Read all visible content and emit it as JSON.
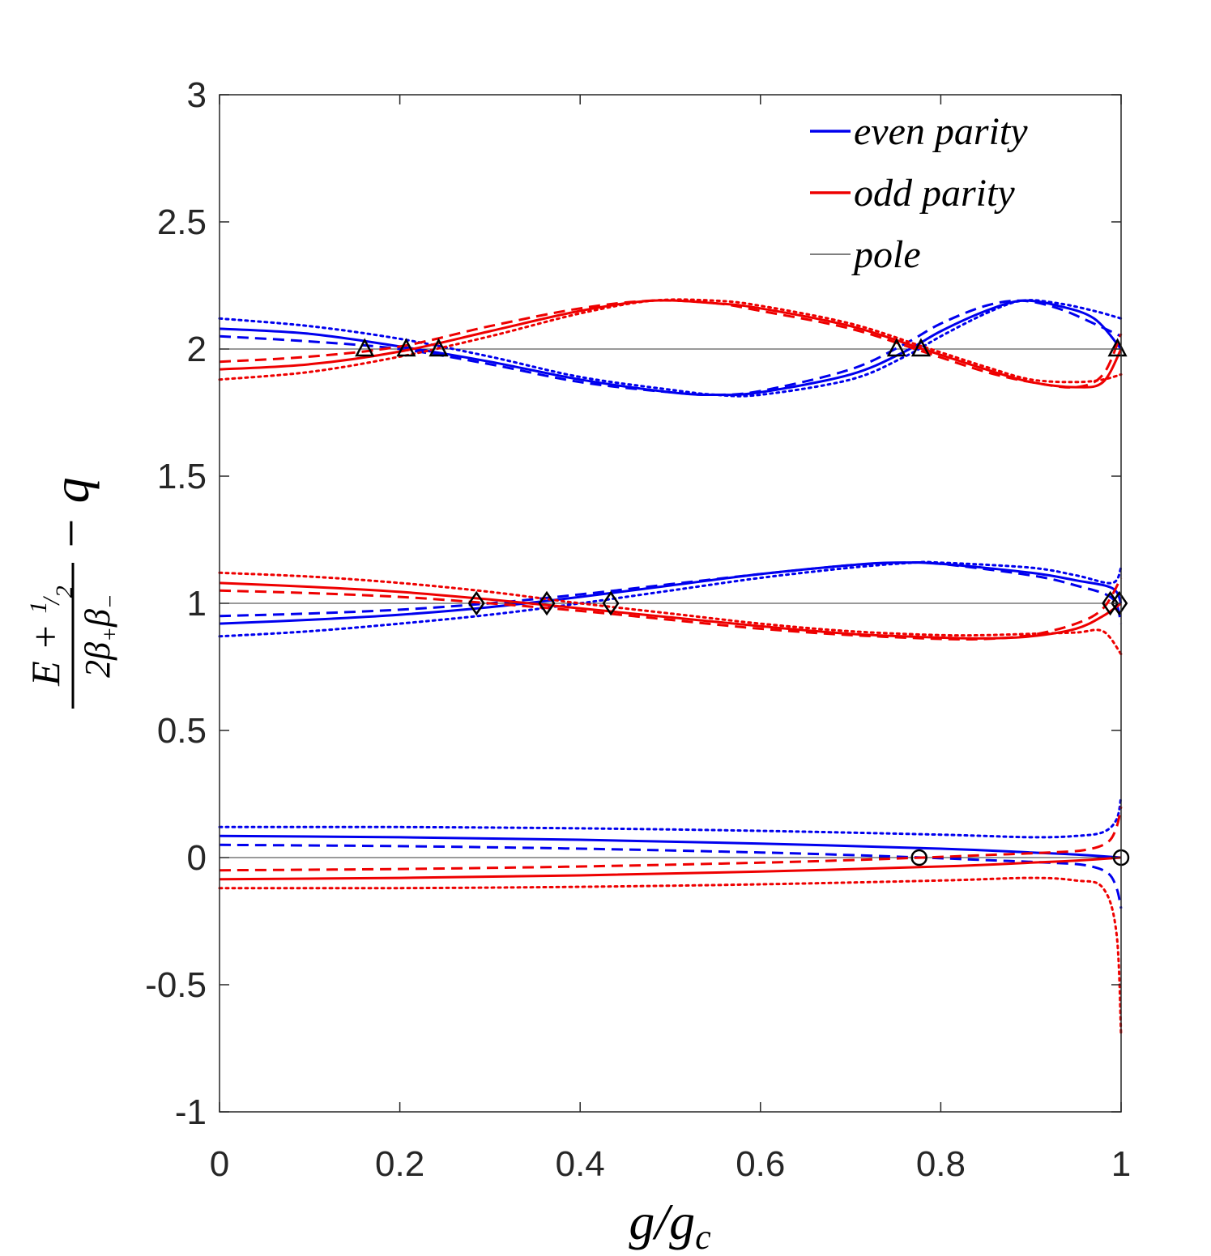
{
  "chart_data": {
    "type": "line",
    "xlabel": "g/g_c",
    "ylabel": "(E + 1/2) / (2β₊β₋) − q",
    "xlim": [
      0,
      1
    ],
    "ylim": [
      -1,
      3
    ],
    "x_ticks": [
      "0",
      "0.2",
      "0.4",
      "0.6",
      "0.8",
      "1"
    ],
    "y_ticks": [
      "-1",
      "-0.5",
      "0",
      "0.5",
      "1",
      "1.5",
      "2",
      "2.5",
      "3"
    ],
    "legend": {
      "position": "top-right",
      "entries": [
        {
          "label": "even parity",
          "color": "#0000ee"
        },
        {
          "label": "odd parity",
          "color": "#ee0000"
        },
        {
          "label": "pole",
          "color": "#333333"
        }
      ]
    },
    "poles": [
      0,
      1,
      2
    ],
    "series": [
      {
        "name": "even q=0 solid",
        "color": "#0000ee",
        "dash": "solid",
        "x": [
          0,
          0.2,
          0.4,
          0.6,
          0.8,
          0.9,
          0.95,
          1.0
        ],
        "y": [
          0.085,
          0.08,
          0.07,
          0.055,
          0.035,
          0.02,
          0.012,
          0.0
        ]
      },
      {
        "name": "even q=0 dashed",
        "color": "#0000ee",
        "dash": "dashed",
        "x": [
          0,
          0.2,
          0.4,
          0.6,
          0.7,
          0.78,
          0.85,
          0.92,
          0.96,
          0.985,
          0.995,
          1.0
        ],
        "y": [
          0.05,
          0.045,
          0.035,
          0.02,
          0.01,
          0.0,
          -0.01,
          -0.02,
          -0.03,
          -0.06,
          -0.12,
          -0.2
        ]
      },
      {
        "name": "even q=0 dotted",
        "color": "#0000ee",
        "dash": "dotted",
        "x": [
          0,
          0.2,
          0.4,
          0.6,
          0.8,
          0.9,
          0.95,
          0.98,
          0.995,
          1.0
        ],
        "y": [
          0.12,
          0.12,
          0.115,
          0.105,
          0.09,
          0.08,
          0.085,
          0.1,
          0.15,
          0.24
        ]
      },
      {
        "name": "odd q=0 solid",
        "color": "#ee0000",
        "dash": "solid",
        "x": [
          0,
          0.2,
          0.4,
          0.6,
          0.8,
          0.9,
          0.95,
          1.0
        ],
        "y": [
          -0.085,
          -0.08,
          -0.07,
          -0.055,
          -0.035,
          -0.02,
          -0.012,
          0.0
        ]
      },
      {
        "name": "odd q=0 dashed",
        "color": "#ee0000",
        "dash": "dashed",
        "x": [
          0,
          0.2,
          0.4,
          0.6,
          0.7,
          0.78,
          0.85,
          0.92,
          0.96,
          0.985,
          0.995,
          1.0
        ],
        "y": [
          -0.05,
          -0.045,
          -0.035,
          -0.02,
          -0.01,
          0.0,
          0.01,
          0.02,
          0.03,
          0.06,
          0.12,
          0.2
        ]
      },
      {
        "name": "odd q=0 dotted",
        "color": "#ee0000",
        "dash": "dotted",
        "x": [
          0,
          0.2,
          0.4,
          0.6,
          0.8,
          0.9,
          0.95,
          0.98,
          0.995,
          1.0
        ],
        "y": [
          -0.12,
          -0.12,
          -0.115,
          -0.105,
          -0.09,
          -0.08,
          -0.09,
          -0.12,
          -0.3,
          -0.7
        ]
      },
      {
        "name": "even q=1 solid",
        "color": "#0000ee",
        "dash": "solid",
        "x": [
          0,
          0.1,
          0.2,
          0.3,
          0.4,
          0.5,
          0.6,
          0.7,
          0.75,
          0.8,
          0.9,
          0.95,
          0.99,
          1.0
        ],
        "y": [
          0.92,
          0.935,
          0.955,
          0.985,
          1.025,
          1.07,
          1.115,
          1.15,
          1.16,
          1.155,
          1.12,
          1.09,
          1.06,
          1.0
        ]
      },
      {
        "name": "even q=1 dashed",
        "color": "#0000ee",
        "dash": "dashed",
        "x": [
          0,
          0.1,
          0.2,
          0.3,
          0.4,
          0.5,
          0.6,
          0.7,
          0.76,
          0.8,
          0.9,
          0.95,
          0.99,
          1.0
        ],
        "y": [
          0.95,
          0.96,
          0.975,
          1.0,
          1.035,
          1.075,
          1.115,
          1.15,
          1.16,
          1.155,
          1.11,
          1.07,
          1.02,
          0.92
        ]
      },
      {
        "name": "even q=1 dotted",
        "color": "#0000ee",
        "dash": "dotted",
        "x": [
          0,
          0.1,
          0.2,
          0.3,
          0.4,
          0.5,
          0.6,
          0.7,
          0.77,
          0.8,
          0.9,
          0.95,
          0.99,
          1.0
        ],
        "y": [
          0.87,
          0.89,
          0.92,
          0.955,
          1.0,
          1.05,
          1.1,
          1.14,
          1.16,
          1.16,
          1.14,
          1.11,
          1.08,
          1.14
        ]
      },
      {
        "name": "odd q=1 solid",
        "color": "#ee0000",
        "dash": "solid",
        "x": [
          0,
          0.1,
          0.2,
          0.3,
          0.4,
          0.5,
          0.6,
          0.7,
          0.8,
          0.85,
          0.9,
          0.95,
          0.98,
          1.0
        ],
        "y": [
          1.08,
          1.065,
          1.045,
          1.015,
          0.98,
          0.945,
          0.91,
          0.88,
          0.865,
          0.862,
          0.87,
          0.9,
          0.95,
          1.0
        ]
      },
      {
        "name": "odd q=1 dashed",
        "color": "#ee0000",
        "dash": "dashed",
        "x": [
          0,
          0.1,
          0.2,
          0.3,
          0.4,
          0.5,
          0.6,
          0.7,
          0.8,
          0.85,
          0.9,
          0.95,
          0.98,
          1.0
        ],
        "y": [
          1.05,
          1.04,
          1.025,
          1.0,
          0.97,
          0.935,
          0.9,
          0.875,
          0.86,
          0.86,
          0.875,
          0.92,
          0.98,
          1.1
        ]
      },
      {
        "name": "odd q=1 dotted",
        "color": "#ee0000",
        "dash": "dotted",
        "x": [
          0,
          0.1,
          0.2,
          0.3,
          0.4,
          0.5,
          0.6,
          0.7,
          0.8,
          0.85,
          0.9,
          0.95,
          0.98,
          1.0
        ],
        "y": [
          1.12,
          1.105,
          1.08,
          1.045,
          1.0,
          0.96,
          0.92,
          0.89,
          0.875,
          0.875,
          0.88,
          0.885,
          0.89,
          0.8
        ]
      },
      {
        "name": "even q=2 solid",
        "color": "#0000ee",
        "dash": "solid",
        "x": [
          0,
          0.1,
          0.2,
          0.3,
          0.4,
          0.5,
          0.55,
          0.6,
          0.7,
          0.76,
          0.8,
          0.85,
          0.89,
          0.93,
          0.97,
          1.0
        ],
        "y": [
          2.08,
          2.06,
          2.01,
          1.95,
          1.88,
          1.83,
          1.82,
          1.83,
          1.9,
          1.99,
          2.07,
          2.15,
          2.19,
          2.17,
          2.12,
          2.0
        ]
      },
      {
        "name": "even q=2 dashed",
        "color": "#0000ee",
        "dash": "dashed",
        "x": [
          0,
          0.1,
          0.2,
          0.3,
          0.4,
          0.5,
          0.55,
          0.6,
          0.7,
          0.76,
          0.8,
          0.85,
          0.89,
          0.93,
          0.97,
          1.0
        ],
        "y": [
          2.05,
          2.03,
          2.0,
          1.94,
          1.87,
          1.83,
          1.82,
          1.835,
          1.92,
          2.02,
          2.1,
          2.17,
          2.19,
          2.16,
          2.1,
          2.05
        ]
      },
      {
        "name": "even q=2 dotted",
        "color": "#0000ee",
        "dash": "dotted",
        "x": [
          0,
          0.1,
          0.2,
          0.3,
          0.4,
          0.5,
          0.55,
          0.6,
          0.7,
          0.76,
          0.8,
          0.85,
          0.89,
          0.93,
          0.97,
          1.0
        ],
        "y": [
          2.12,
          2.09,
          2.04,
          1.97,
          1.89,
          1.84,
          1.82,
          1.82,
          1.88,
          1.97,
          2.05,
          2.14,
          2.19,
          2.18,
          2.15,
          2.12
        ]
      },
      {
        "name": "odd q=2 solid",
        "color": "#ee0000",
        "dash": "solid",
        "x": [
          0,
          0.1,
          0.2,
          0.3,
          0.4,
          0.48,
          0.55,
          0.6,
          0.7,
          0.78,
          0.85,
          0.9,
          0.95,
          0.98,
          1.0
        ],
        "y": [
          1.92,
          1.94,
          1.99,
          2.07,
          2.15,
          2.19,
          2.18,
          2.16,
          2.09,
          2.0,
          1.92,
          1.87,
          1.85,
          1.87,
          2.0
        ]
      },
      {
        "name": "odd q=2 dashed",
        "color": "#ee0000",
        "dash": "dashed",
        "x": [
          0,
          0.1,
          0.2,
          0.3,
          0.4,
          0.48,
          0.55,
          0.6,
          0.7,
          0.78,
          0.85,
          0.9,
          0.95,
          0.98,
          1.0
        ],
        "y": [
          1.95,
          1.97,
          2.01,
          2.09,
          2.16,
          2.19,
          2.18,
          2.15,
          2.08,
          1.99,
          1.91,
          1.87,
          1.85,
          1.9,
          2.06
        ]
      },
      {
        "name": "odd q=2 dotted",
        "color": "#ee0000",
        "dash": "dotted",
        "x": [
          0,
          0.1,
          0.2,
          0.3,
          0.4,
          0.48,
          0.55,
          0.6,
          0.7,
          0.78,
          0.85,
          0.9,
          0.95,
          0.98,
          1.0
        ],
        "y": [
          1.88,
          1.91,
          1.97,
          2.05,
          2.14,
          2.19,
          2.19,
          2.17,
          2.1,
          2.01,
          1.93,
          1.88,
          1.87,
          1.88,
          1.9
        ]
      }
    ],
    "markers": [
      {
        "shape": "circle",
        "x": 0.776,
        "y": 0
      },
      {
        "shape": "circle",
        "x": 1.0,
        "y": 0
      },
      {
        "shape": "diamond",
        "x": 0.285,
        "y": 1
      },
      {
        "shape": "diamond",
        "x": 0.363,
        "y": 1
      },
      {
        "shape": "diamond",
        "x": 0.434,
        "y": 1
      },
      {
        "shape": "diamond",
        "x": 0.988,
        "y": 1
      },
      {
        "shape": "diamond",
        "x": 0.998,
        "y": 1
      },
      {
        "shape": "triangle",
        "x": 0.161,
        "y": 2
      },
      {
        "shape": "triangle",
        "x": 0.207,
        "y": 2
      },
      {
        "shape": "triangle",
        "x": 0.243,
        "y": 2
      },
      {
        "shape": "triangle",
        "x": 0.751,
        "y": 2
      },
      {
        "shape": "triangle",
        "x": 0.778,
        "y": 2
      },
      {
        "shape": "triangle",
        "x": 0.996,
        "y": 2
      }
    ]
  }
}
